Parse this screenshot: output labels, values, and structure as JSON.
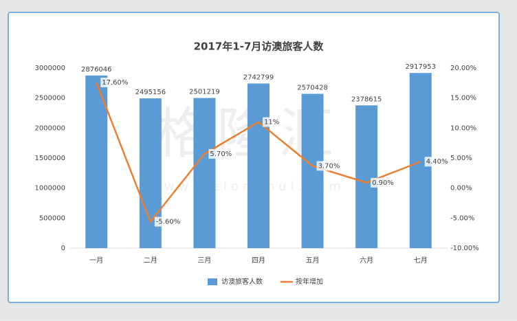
{
  "chart_data": {
    "type": "bar",
    "title": "2017年1-7月访澳旅客人数",
    "watermark": "格隆汇",
    "watermark_url": "www.gelonghui.com",
    "categories": [
      "一月",
      "二月",
      "三月",
      "四月",
      "五月",
      "六月",
      "七月"
    ],
    "series": [
      {
        "name": "访澳旅客人数",
        "color": "#5b9bd5",
        "values": [
          2876046,
          2495156,
          2501219,
          2742799,
          2570428,
          2378615,
          2917953
        ]
      },
      {
        "name": "按年增加",
        "color": "#ed7d31",
        "type": "line",
        "axis": "y2",
        "values": [
          17.6,
          -5.6,
          5.7,
          11,
          3.7,
          0.9,
          4.4
        ],
        "value_labels": [
          "17.60%",
          "-5.60%",
          "5.70%",
          "11%",
          "3.70%",
          "0.90%",
          "4.40%"
        ]
      }
    ],
    "ylim": [
      0,
      3000000
    ],
    "yticks": [
      0,
      500000,
      1000000,
      1500000,
      2000000,
      2500000,
      3000000
    ],
    "y2lim": [
      -10,
      20
    ],
    "y2ticks": [
      {
        "value": -10,
        "label": "-10.00%"
      },
      {
        "value": -5,
        "label": "-5.00%"
      },
      {
        "value": 0,
        "label": "0.00%"
      },
      {
        "value": 5,
        "label": "5.00%"
      },
      {
        "value": 10,
        "label": "10.00%"
      },
      {
        "value": 15,
        "label": "15.00%"
      },
      {
        "value": 20,
        "label": "20.00%"
      }
    ],
    "grid": false,
    "legend": "bottom"
  }
}
